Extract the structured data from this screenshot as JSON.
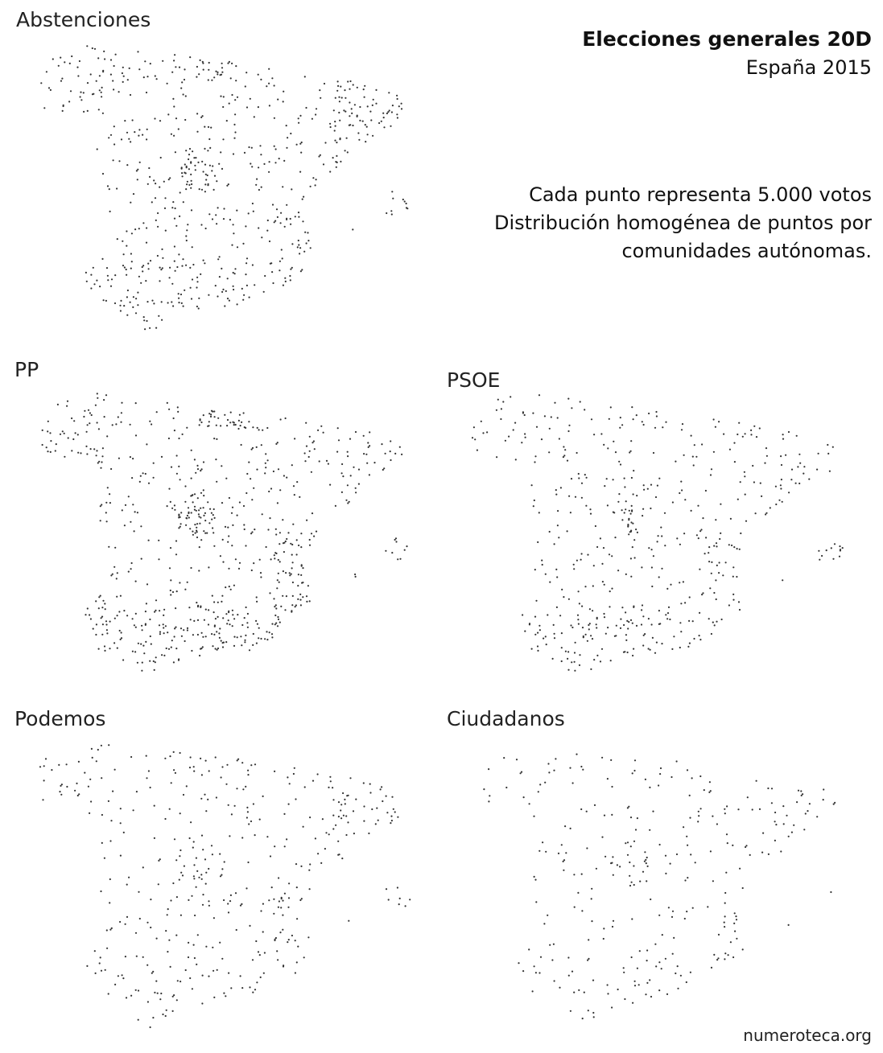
{
  "title": "Elecciones generales 20D",
  "subtitle": "España 2015",
  "notes": [
    "Cada punto representa 5.000 votos",
    "Distribución homogénea de puntos por",
    "comunidades autónomas."
  ],
  "credit": "numeroteca.org",
  "dot_color": "#333333",
  "panels": [
    {
      "name": "abstenciones",
      "label": "Abstenciones"
    },
    {
      "name": "pp",
      "label": "PP"
    },
    {
      "name": "psoe",
      "label": "PSOE"
    },
    {
      "name": "podemos",
      "label": "Podemos"
    },
    {
      "name": "ciudadanos",
      "label": "Ciudadanos"
    }
  ]
}
